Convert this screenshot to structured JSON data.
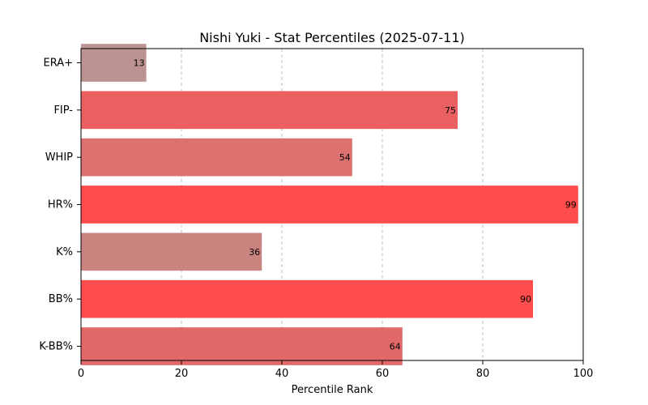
{
  "chart_data": {
    "type": "bar",
    "orientation": "horizontal",
    "title": "Nishi Yuki - Stat Percentiles (2025-07-11)",
    "xlabel": "Percentile Rank",
    "ylabel": "",
    "xlim": [
      0,
      100
    ],
    "xticks": [
      "0",
      "20",
      "40",
      "60",
      "80",
      "100"
    ],
    "grid": "x-dashed",
    "categories": [
      "ERA+",
      "FIP-",
      "WHIP",
      "HR%",
      "K%",
      "BB%",
      "K-BB%"
    ],
    "values": [
      13,
      75,
      54,
      99,
      36,
      90,
      64
    ],
    "data_labels": [
      "13",
      "75",
      "54",
      "99",
      "36",
      "90",
      "64"
    ],
    "colors": [
      "#bc9391",
      "#ea5f5f",
      "#dc716f",
      "#ff4c4c",
      "#c98480",
      "#ff4c4c",
      "#e36968"
    ]
  }
}
